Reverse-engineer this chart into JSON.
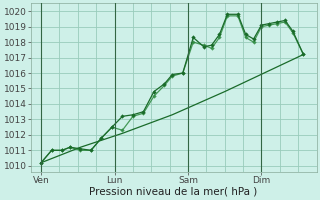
{
  "background_color": "#cef0e8",
  "grid_color": "#99ccbb",
  "line_color": "#1a6b2a",
  "line_color2": "#2d8a3e",
  "ylabel_ticks": [
    1010,
    1011,
    1012,
    1013,
    1014,
    1015,
    1016,
    1017,
    1018,
    1019,
    1020
  ],
  "ylim": [
    1009.6,
    1020.5
  ],
  "xlabel": "Pression niveau de la mer( hPa )",
  "day_labels": [
    "Ven",
    "Lun",
    "Sam",
    "Dim"
  ],
  "day_positions": [
    0,
    56,
    112,
    168
  ],
  "xlim": [
    -8,
    210
  ],
  "series1_x": [
    0,
    8,
    16,
    22,
    30,
    38,
    46,
    54,
    62,
    70,
    78,
    86,
    94,
    100,
    108,
    116,
    124,
    130,
    136,
    142,
    150,
    156,
    162,
    168,
    174,
    180,
    186,
    192,
    200
  ],
  "series1_y": [
    1010.2,
    1011.0,
    1011.0,
    1011.2,
    1011.1,
    1011.0,
    1011.8,
    1012.5,
    1013.2,
    1013.3,
    1013.5,
    1014.8,
    1015.3,
    1015.9,
    1016.0,
    1018.3,
    1017.7,
    1017.8,
    1018.5,
    1019.8,
    1019.8,
    1018.5,
    1018.2,
    1019.1,
    1019.2,
    1019.3,
    1019.4,
    1018.7,
    1017.2
  ],
  "series2_x": [
    0,
    8,
    16,
    22,
    30,
    38,
    46,
    54,
    62,
    70,
    78,
    86,
    94,
    100,
    108,
    116,
    124,
    130,
    136,
    142,
    150,
    156,
    162,
    168,
    174,
    180,
    186,
    192,
    200
  ],
  "series2_y": [
    1010.2,
    1011.0,
    1011.0,
    1011.2,
    1011.0,
    1011.0,
    1011.8,
    1012.5,
    1012.3,
    1013.2,
    1013.4,
    1014.5,
    1015.2,
    1015.8,
    1016.0,
    1018.0,
    1017.8,
    1017.6,
    1018.3,
    1019.7,
    1019.7,
    1018.3,
    1018.0,
    1019.0,
    1019.1,
    1019.2,
    1019.3,
    1018.6,
    1017.2
  ],
  "series3_x": [
    0,
    30,
    62,
    100,
    140,
    175,
    200
  ],
  "series3_y": [
    1010.2,
    1011.2,
    1012.1,
    1013.3,
    1014.8,
    1016.2,
    1017.2
  ],
  "vline_color": "#336644",
  "tick_fontsize": 6.5,
  "xlabel_fontsize": 7.5
}
